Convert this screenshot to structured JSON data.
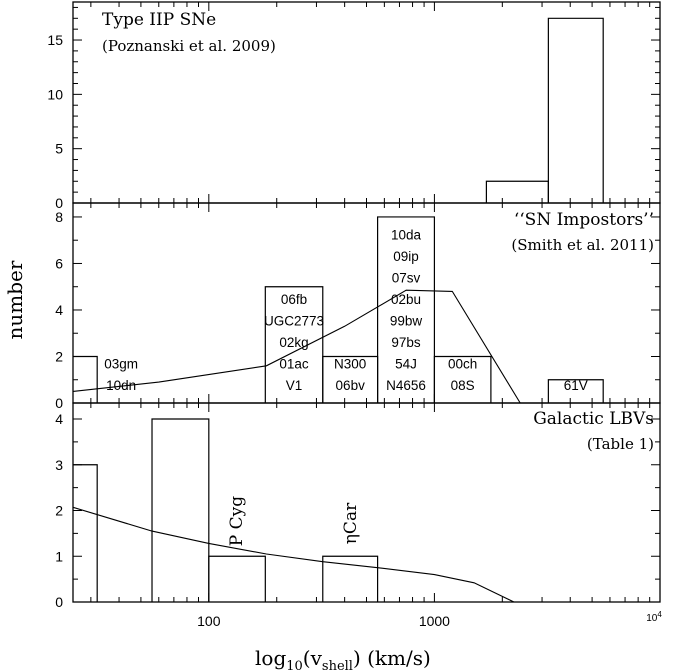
{
  "figure": {
    "ylabel": "number",
    "xlabel": {
      "pre": "log",
      "sub": "10",
      "mid": "(v",
      "sub2": "shell",
      "post": ")  (km/s)"
    }
  },
  "chart_data": [
    {
      "type": "bar",
      "title": "Type IIP SNe",
      "subtitle": "(Poznanski et al. 2009)",
      "x_scale": "log",
      "xlim": [
        25,
        10000
      ],
      "ylim": [
        0,
        18.5
      ],
      "yticks": [
        0,
        5,
        10,
        15
      ],
      "bins": [
        {
          "x0": 1700,
          "x1": 3200,
          "value": 2
        },
        {
          "x0": 3200,
          "x1": 5600,
          "value": 17
        }
      ]
    },
    {
      "type": "bar",
      "title": "‘‘SN Impostors’’",
      "subtitle": "(Smith et al. 2011)",
      "x_scale": "log",
      "xlim": [
        25,
        10000
      ],
      "ylim": [
        0,
        8.6
      ],
      "yticks": [
        0,
        2,
        4,
        6,
        8
      ],
      "bins": [
        {
          "x0": 25,
          "x1": 32,
          "value": 2,
          "labels": [
            "03gm",
            "10dn"
          ]
        },
        {
          "x0": 178,
          "x1": 320,
          "value": 5,
          "labels": [
            "06fb",
            "UGC2773",
            "02kg",
            "01ac",
            "V1"
          ]
        },
        {
          "x0": 320,
          "x1": 560,
          "value": 2,
          "labels": [
            "N300",
            "06bv"
          ]
        },
        {
          "x0": 560,
          "x1": 1000,
          "value": 8,
          "labels": [
            "10da",
            "09ip",
            "07sv",
            "02bu",
            "99bw",
            "97bs",
            "54J",
            "N4656"
          ]
        },
        {
          "x0": 1000,
          "x1": 1780,
          "value": 2,
          "labels": [
            "00ch",
            "08S"
          ]
        },
        {
          "x0": 3200,
          "x1": 5600,
          "value": 1,
          "labels": [
            "61V"
          ]
        }
      ],
      "curve": {
        "x": [
          25,
          60,
          180,
          400,
          750,
          1200,
          2400
        ],
        "y": [
          0.5,
          0.9,
          1.6,
          3.3,
          4.85,
          4.8,
          0
        ]
      }
    },
    {
      "type": "bar",
      "title": "Galactic LBVs",
      "subtitle": "(Table 1)",
      "x_scale": "log",
      "xlim": [
        25,
        10000
      ],
      "ylim": [
        0,
        4.35
      ],
      "yticks": [
        0,
        1,
        2,
        3,
        4
      ],
      "xticks": [
        {
          "value": 100,
          "label": "100"
        },
        {
          "value": 1000,
          "label": "1000"
        }
      ],
      "xtick_sup": {
        "value": 10000,
        "base": "10",
        "exp": "4"
      },
      "bins": [
        {
          "x0": 25,
          "x1": 32,
          "value": 3
        },
        {
          "x0": 56,
          "x1": 100,
          "value": 4
        },
        {
          "x0": 100,
          "x1": 178,
          "value": 1,
          "labels": [
            "P  Cyg"
          ]
        },
        {
          "x0": 320,
          "x1": 560,
          "value": 1,
          "labels": [
            "ηCar"
          ]
        }
      ],
      "curve": {
        "x": [
          25,
          56,
          100,
          180,
          320,
          560,
          1000,
          1500,
          2250
        ],
        "y": [
          2.07,
          1.55,
          1.28,
          1.05,
          0.88,
          0.75,
          0.6,
          0.42,
          0
        ]
      }
    }
  ]
}
